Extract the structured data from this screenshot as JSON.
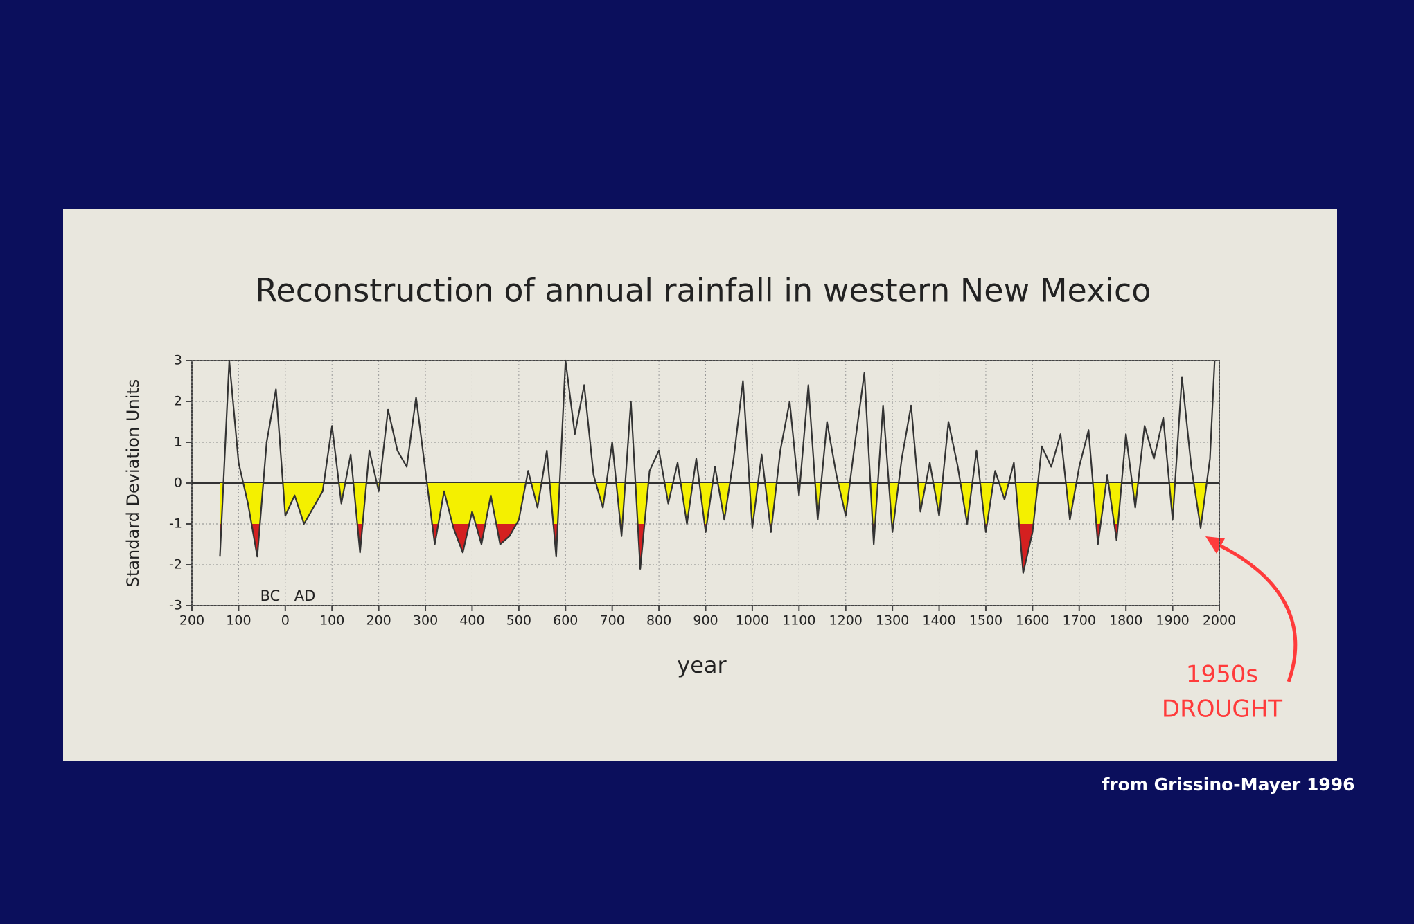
{
  "chart_data": {
    "type": "line",
    "title": "Reconstruction of annual rainfall in western New Mexico",
    "xlabel": "year",
    "ylabel": "Standard Deviation Units",
    "annotations": [
      "BC",
      "AD",
      "1950s",
      "DROUGHT"
    ],
    "source": "from Grissino-Mayer 1996",
    "x": [
      -140,
      -120,
      -100,
      -80,
      -60,
      -40,
      -20,
      0,
      20,
      40,
      60,
      80,
      100,
      120,
      140,
      160,
      180,
      200,
      220,
      240,
      260,
      280,
      300,
      320,
      340,
      360,
      380,
      400,
      420,
      440,
      460,
      480,
      500,
      520,
      540,
      560,
      580,
      600,
      620,
      640,
      660,
      680,
      700,
      720,
      740,
      760,
      780,
      800,
      820,
      840,
      860,
      880,
      900,
      920,
      940,
      960,
      980,
      1000,
      1020,
      1040,
      1060,
      1080,
      1100,
      1120,
      1140,
      1160,
      1180,
      1200,
      1220,
      1240,
      1260,
      1280,
      1300,
      1320,
      1340,
      1360,
      1380,
      1400,
      1420,
      1440,
      1460,
      1480,
      1500,
      1520,
      1540,
      1560,
      1580,
      1600,
      1620,
      1640,
      1660,
      1680,
      1700,
      1720,
      1740,
      1760,
      1780,
      1800,
      1820,
      1840,
      1860,
      1880,
      1900,
      1920,
      1940,
      1960,
      1980,
      1990
    ],
    "series": [
      {
        "name": "rainfall",
        "color": "#333333",
        "values": [
          -1.8,
          3.0,
          0.5,
          -0.5,
          -1.8,
          1.0,
          2.3,
          -0.8,
          -0.3,
          -1.0,
          -0.6,
          -0.2,
          1.4,
          -0.5,
          0.7,
          -1.7,
          0.8,
          -0.2,
          1.8,
          0.8,
          0.4,
          2.1,
          0.3,
          -1.5,
          -0.2,
          -1.1,
          -1.7,
          -0.7,
          -1.5,
          -0.3,
          -1.5,
          -1.3,
          -0.9,
          0.3,
          -0.6,
          0.8,
          -1.8,
          3.0,
          1.2,
          2.4,
          0.2,
          -0.6,
          1.0,
          -1.3,
          2.0,
          -2.1,
          0.3,
          0.8,
          -0.5,
          0.5,
          -1.0,
          0.6,
          -1.2,
          0.4,
          -0.9,
          0.6,
          2.5,
          -1.1,
          0.7,
          -1.2,
          0.8,
          2.0,
          -0.3,
          2.4,
          -0.9,
          1.5,
          0.2,
          -0.8,
          1.0,
          2.7,
          -1.5,
          1.9,
          -1.2,
          0.6,
          1.9,
          -0.7,
          0.5,
          -0.8,
          1.5,
          0.4,
          -1.0,
          0.8,
          -1.2,
          0.3,
          -0.4,
          0.5,
          -2.2,
          -1.2,
          0.9,
          0.4,
          1.2,
          -0.9,
          0.4,
          1.3,
          -1.5,
          0.2,
          -1.4,
          1.2,
          -0.6,
          1.4,
          0.6,
          1.6,
          -0.9,
          2.6,
          0.4,
          -1.1,
          0.6,
          3.0
        ]
      }
    ],
    "fill_thresholds": [
      0,
      -1
    ],
    "fill_colors": [
      "#f4f000",
      "#d42020"
    ],
    "xlim": [
      -200,
      2000
    ],
    "xticks": [
      {
        "value": -200,
        "label": "200"
      },
      {
        "value": -100,
        "label": "100"
      },
      0,
      100,
      200,
      300,
      400,
      500,
      600,
      700,
      800,
      900,
      1000,
      1100,
      1200,
      1300,
      1400,
      1500,
      1600,
      1700,
      1800,
      1900,
      2000
    ],
    "ylim": [
      -3,
      3
    ],
    "yticks": [
      -3,
      -2,
      -1,
      0,
      1,
      2,
      3
    ],
    "grid": true
  }
}
